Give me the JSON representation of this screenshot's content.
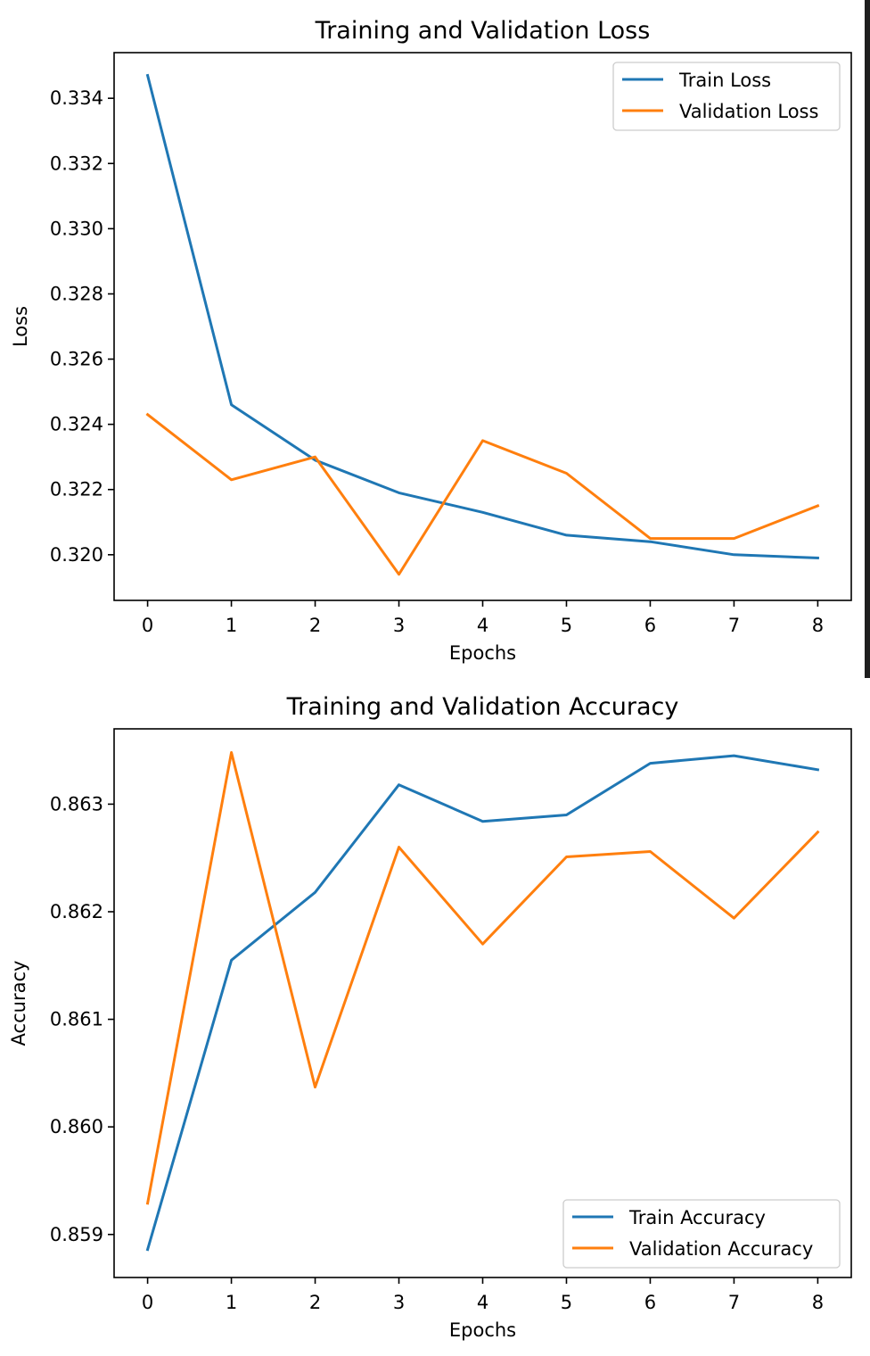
{
  "chart_data": [
    {
      "type": "line",
      "title": "Training and Validation Loss",
      "xlabel": "Epochs",
      "ylabel": "Loss",
      "x": [
        0,
        1,
        2,
        3,
        4,
        5,
        6,
        7,
        8
      ],
      "x_ticks": [
        "0",
        "1",
        "2",
        "3",
        "4",
        "5",
        "6",
        "7",
        "8"
      ],
      "y_ticks": [
        "0.320",
        "0.322",
        "0.324",
        "0.326",
        "0.328",
        "0.330",
        "0.332",
        "0.334"
      ],
      "xlim": [
        -0.4,
        8.4
      ],
      "ylim": [
        0.3186,
        0.3354
      ],
      "grid": false,
      "legend_position": "upper right",
      "series": [
        {
          "name": "Train Loss",
          "color": "#1f77b4",
          "values": [
            0.3347,
            0.3246,
            0.3229,
            0.3219,
            0.3213,
            0.3206,
            0.3204,
            0.32,
            0.3199
          ]
        },
        {
          "name": "Validation Loss",
          "color": "#ff7f0e",
          "values": [
            0.3243,
            0.3223,
            0.323,
            0.3194,
            0.3235,
            0.3225,
            0.3205,
            0.3205,
            0.3215
          ]
        }
      ]
    },
    {
      "type": "line",
      "title": "Training and Validation Accuracy",
      "xlabel": "Epochs",
      "ylabel": "Accuracy",
      "x": [
        0,
        1,
        2,
        3,
        4,
        5,
        6,
        7,
        8
      ],
      "x_ticks": [
        "0",
        "1",
        "2",
        "3",
        "4",
        "5",
        "6",
        "7",
        "8"
      ],
      "y_ticks": [
        "0.859",
        "0.860",
        "0.861",
        "0.862",
        "0.863"
      ],
      "xlim": [
        -0.4,
        8.4
      ],
      "ylim": [
        0.8586,
        0.8637
      ],
      "grid": false,
      "legend_position": "lower right",
      "series": [
        {
          "name": "Train Accuracy",
          "color": "#1f77b4",
          "values": [
            0.85886,
            0.86155,
            0.86218,
            0.86318,
            0.86284,
            0.8629,
            0.86338,
            0.86345,
            0.86332
          ]
        },
        {
          "name": "Validation Accuracy",
          "color": "#ff7f0e",
          "values": [
            0.85929,
            0.86348,
            0.86037,
            0.8626,
            0.8617,
            0.86251,
            0.86256,
            0.86194,
            0.86274
          ]
        }
      ]
    }
  ]
}
